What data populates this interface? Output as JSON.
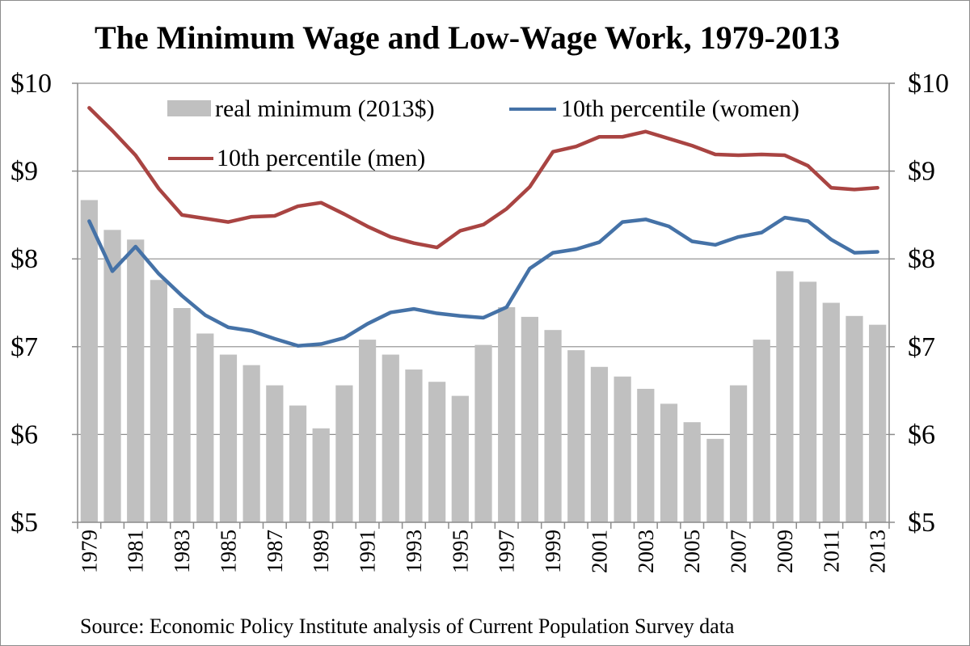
{
  "chart_data": {
    "type": "bar+line",
    "title": "The Minimum Wage and Low-Wage Work, 1979-2013",
    "source": "Source: Economic Policy Institute analysis of Current Population Survey data",
    "categories": [
      "1979",
      "1980",
      "1981",
      "1982",
      "1983",
      "1984",
      "1985",
      "1986",
      "1987",
      "1988",
      "1989",
      "1990",
      "1991",
      "1992",
      "1993",
      "1994",
      "1995",
      "1996",
      "1997",
      "1998",
      "1999",
      "2000",
      "2001",
      "2002",
      "2003",
      "2004",
      "2005",
      "2006",
      "2007",
      "2008",
      "2009",
      "2010",
      "2011",
      "2012",
      "2013"
    ],
    "x_tick_labels": [
      "1979",
      "1981",
      "1983",
      "1985",
      "1987",
      "1989",
      "1991",
      "1993",
      "1995",
      "1997",
      "1999",
      "2001",
      "2003",
      "2005",
      "2007",
      "2009",
      "2011",
      "2013"
    ],
    "y_tick_labels": [
      "$5",
      "$6",
      "$7",
      "$8",
      "$9",
      "$10"
    ],
    "ylim": [
      5,
      10
    ],
    "y_ticks": [
      5,
      6,
      7,
      8,
      9,
      10
    ],
    "legend": {
      "placement": "top",
      "entries": [
        "real minimum (2013$)",
        "10th percentile (women)",
        "10th percentile (men)"
      ]
    },
    "series": [
      {
        "name": "real minimum (2013$)",
        "kind": "bar",
        "color": "#c0c0c0",
        "values": [
          8.67,
          8.33,
          8.22,
          7.76,
          7.44,
          7.15,
          6.91,
          6.79,
          6.56,
          6.33,
          6.07,
          6.56,
          7.08,
          6.91,
          6.74,
          6.6,
          6.44,
          7.02,
          7.45,
          7.34,
          7.19,
          6.96,
          6.77,
          6.66,
          6.52,
          6.35,
          6.14,
          5.95,
          6.56,
          7.08,
          7.86,
          7.74,
          7.5,
          7.35,
          7.25
        ]
      },
      {
        "name": "10th percentile (women)",
        "kind": "line",
        "color": "#4572a7",
        "values": [
          8.43,
          7.86,
          8.14,
          7.83,
          7.58,
          7.36,
          7.22,
          7.18,
          7.09,
          7.01,
          7.03,
          7.1,
          7.26,
          7.39,
          7.43,
          7.38,
          7.35,
          7.33,
          7.45,
          7.89,
          8.07,
          8.11,
          8.19,
          8.42,
          8.45,
          8.37,
          8.2,
          8.16,
          8.25,
          8.3,
          8.47,
          8.43,
          8.22,
          8.07,
          8.08
        ]
      },
      {
        "name": "10th percentile (men)",
        "kind": "line",
        "color": "#a94442",
        "values": [
          9.72,
          9.46,
          9.18,
          8.8,
          8.5,
          8.46,
          8.42,
          8.48,
          8.49,
          8.6,
          8.64,
          8.51,
          8.37,
          8.25,
          8.18,
          8.13,
          8.32,
          8.39,
          8.57,
          8.82,
          9.22,
          9.28,
          9.39,
          9.39,
          9.45,
          9.37,
          9.29,
          9.19,
          9.18,
          9.19,
          9.18,
          9.06,
          8.81,
          8.79,
          8.81
        ]
      }
    ]
  }
}
